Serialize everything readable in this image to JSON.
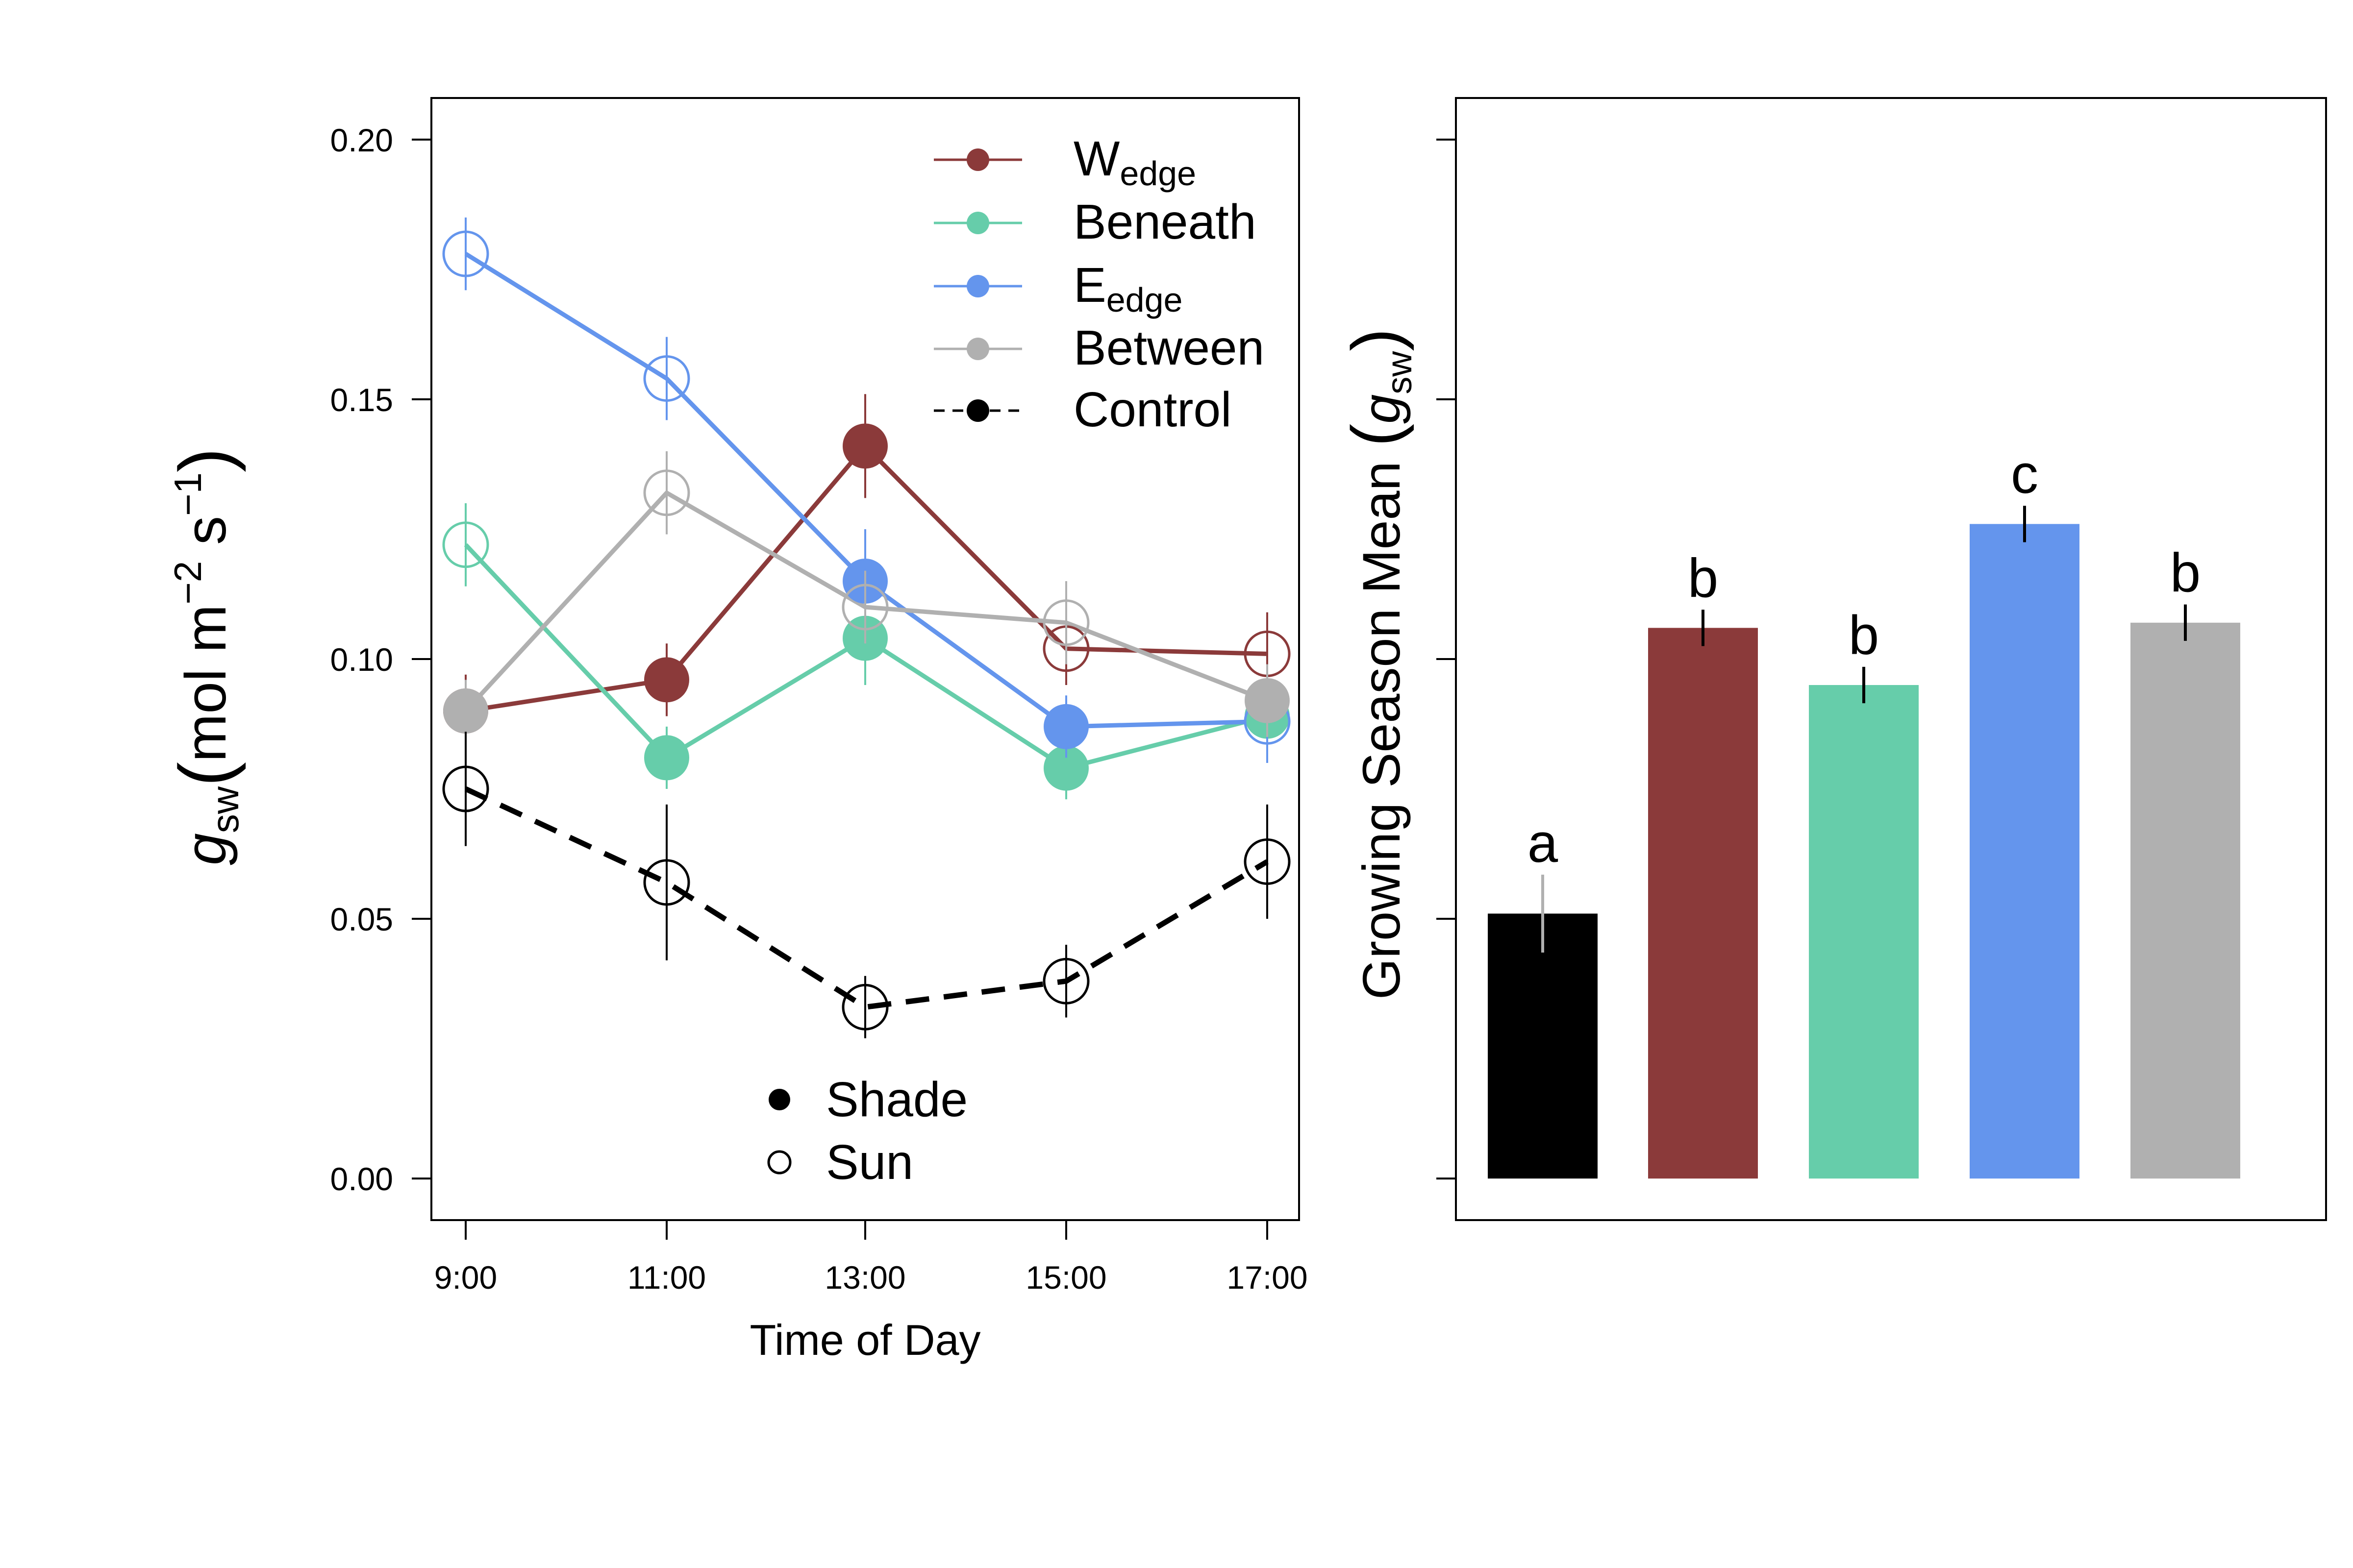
{
  "chart_data": [
    {
      "type": "line",
      "xlabel": "Time of Day",
      "ylabel": {
        "var": "g",
        "sub": "sw",
        "units_prefix": "mol m",
        "exp1": "−2",
        "units_mid": " s",
        "exp2": "−1"
      },
      "ylim": [
        -0.008,
        0.208
      ],
      "y_ticks": [
        "0.00",
        "0.05",
        "0.10",
        "0.15",
        "0.20"
      ],
      "y_tick_values": [
        0.0,
        0.05,
        0.1,
        0.15,
        0.2
      ],
      "categories": [
        "9:00",
        "11:00",
        "13:00",
        "15:00",
        "17:00"
      ],
      "grid": false,
      "legend_position": "top-right",
      "series": [
        {
          "name": "Wedge",
          "name_main": "W",
          "name_sub": "edge",
          "color": "#8B3A3A",
          "line_style": "solid",
          "values": [
            0.09,
            0.096,
            0.141,
            0.102,
            0.101
          ],
          "errors": [
            0.007,
            0.007,
            0.01,
            0.007,
            0.008
          ],
          "light": [
            "shade",
            "shade",
            "shade",
            "sun",
            "sun"
          ]
        },
        {
          "name": "Beneath",
          "color": "#66CDAA",
          "line_style": "solid",
          "values": [
            0.122,
            0.081,
            0.104,
            0.079,
            0.089
          ],
          "errors": [
            0.008,
            0.006,
            0.009,
            0.006,
            0.006
          ],
          "light": [
            "sun",
            "shade",
            "shade",
            "shade",
            "shade"
          ]
        },
        {
          "name": "Eedge",
          "name_main": "E",
          "name_sub": "edge",
          "color": "#6495ED",
          "line_style": "solid",
          "values": [
            0.178,
            0.154,
            0.115,
            0.087,
            0.088
          ],
          "errors": [
            0.007,
            0.008,
            0.01,
            0.006,
            0.008
          ],
          "light": [
            "sun",
            "sun",
            "shade",
            "shade",
            "sun"
          ]
        },
        {
          "name": "Between",
          "color": "#B0B0B0",
          "line_style": "solid",
          "values": [
            0.09,
            0.132,
            0.11,
            0.107,
            0.092
          ],
          "errors": [
            0.006,
            0.008,
            0.007,
            0.008,
            0.007
          ],
          "light": [
            "shade",
            "sun",
            "sun",
            "sun",
            "shade"
          ]
        },
        {
          "name": "Control",
          "color": "#000000",
          "line_style": "dashed",
          "values": [
            0.075,
            0.057,
            0.033,
            0.038,
            0.061
          ],
          "errors": [
            0.011,
            0.015,
            0.006,
            0.007,
            0.011
          ],
          "light": [
            "sun",
            "sun",
            "sun",
            "sun",
            "sun"
          ]
        }
      ],
      "marker_legend": [
        {
          "label": "Shade",
          "fill": "filled"
        },
        {
          "label": "Sun",
          "fill": "open"
        }
      ]
    },
    {
      "type": "bar",
      "ylabel": {
        "text": "Growing Season Mean",
        "var": "g",
        "sub": "sw"
      },
      "ylim": [
        -0.008,
        0.208
      ],
      "y_tick_values": [
        0.0,
        0.05,
        0.1,
        0.15,
        0.2
      ],
      "grid": false,
      "categories": [
        "Control",
        "Wedge",
        "Beneath",
        "Eedge",
        "Between"
      ],
      "values": [
        0.051,
        0.106,
        0.095,
        0.126,
        0.107
      ],
      "errors": [
        0.0075,
        0.0035,
        0.0035,
        0.0035,
        0.0035
      ],
      "colors": [
        "#000000",
        "#8B3A3A",
        "#66CDAA",
        "#6495ED",
        "#B0B0B0"
      ],
      "error_colors": [
        "#B0B0B0",
        "#000000",
        "#000000",
        "#000000",
        "#000000"
      ],
      "letters": [
        "a",
        "b",
        "b",
        "c",
        "b"
      ]
    }
  ]
}
